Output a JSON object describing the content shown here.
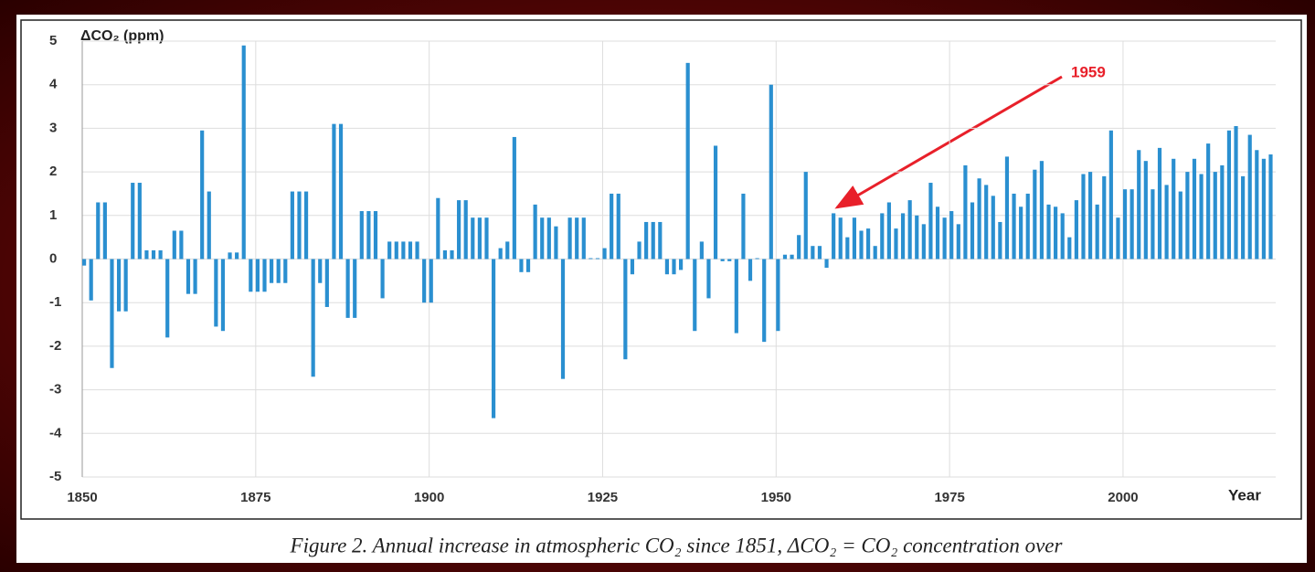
{
  "chart_data": {
    "type": "bar",
    "y_label": "ΔCO₂ (ppm)",
    "x_label": "Year",
    "caption": "Figure 2. Annual increase in atmospheric CO₂ since 1851,  ΔCO₂ = CO₂ concentration over",
    "annotation": "1959",
    "color": "#2a8fd0",
    "grid": true,
    "xlim": [
      1850,
      2022
    ],
    "xticks": [
      1850,
      1875,
      1900,
      1925,
      1950,
      1975,
      2000
    ],
    "ylim": [
      -5,
      5
    ],
    "yticks": [
      -5,
      -4,
      -3,
      -2,
      -1,
      0,
      1,
      2,
      3,
      4,
      5
    ],
    "x": [
      1850,
      1851,
      1852,
      1853,
      1854,
      1855,
      1856,
      1857,
      1858,
      1859,
      1860,
      1861,
      1862,
      1863,
      1864,
      1865,
      1866,
      1867,
      1868,
      1869,
      1870,
      1871,
      1872,
      1873,
      1874,
      1875,
      1876,
      1877,
      1878,
      1879,
      1880,
      1881,
      1882,
      1883,
      1884,
      1885,
      1886,
      1887,
      1888,
      1889,
      1890,
      1891,
      1892,
      1893,
      1894,
      1895,
      1896,
      1897,
      1898,
      1899,
      1900,
      1901,
      1902,
      1903,
      1904,
      1905,
      1906,
      1907,
      1908,
      1909,
      1910,
      1911,
      1912,
      1913,
      1914,
      1915,
      1916,
      1917,
      1918,
      1919,
      1920,
      1921,
      1922,
      1923,
      1924,
      1925,
      1926,
      1927,
      1928,
      1929,
      1930,
      1931,
      1932,
      1933,
      1934,
      1935,
      1936,
      1937,
      1938,
      1939,
      1940,
      1941,
      1942,
      1943,
      1944,
      1945,
      1946,
      1947,
      1948,
      1949,
      1950,
      1951,
      1952,
      1953,
      1954,
      1955,
      1956,
      1957,
      1958,
      1959,
      1960,
      1961,
      1962,
      1963,
      1964,
      1965,
      1966,
      1967,
      1968,
      1969,
      1970,
      1971,
      1972,
      1973,
      1974,
      1975,
      1976,
      1977,
      1978,
      1979,
      1980,
      1981,
      1982,
      1983,
      1984,
      1985,
      1986,
      1987,
      1988,
      1989,
      1990,
      1991,
      1992,
      1993,
      1994,
      1995,
      1996,
      1997,
      1998,
      1999,
      2000,
      2001,
      2002,
      2003,
      2004,
      2005,
      2006,
      2007,
      2008,
      2009,
      2010,
      2011,
      2012,
      2013,
      2014,
      2015,
      2016,
      2017,
      2018,
      2019,
      2020,
      2021
    ],
    "values": [
      -0.15,
      -0.95,
      1.3,
      1.3,
      -2.5,
      -1.2,
      -1.2,
      1.75,
      1.75,
      0.2,
      0.2,
      0.2,
      -1.8,
      0.65,
      0.65,
      -0.8,
      -0.8,
      2.95,
      1.55,
      -1.55,
      -1.65,
      0.15,
      0.15,
      4.9,
      -0.75,
      -0.75,
      -0.75,
      -0.55,
      -0.55,
      -0.55,
      1.55,
      1.55,
      1.55,
      -2.7,
      -0.55,
      -1.1,
      3.1,
      3.1,
      -1.35,
      -1.35,
      1.1,
      1.1,
      1.1,
      -0.9,
      0.4,
      0.4,
      0.4,
      0.4,
      0.4,
      -1.0,
      -1.0,
      1.4,
      0.2,
      0.2,
      1.35,
      1.35,
      0.95,
      0.95,
      0.95,
      -3.65,
      0.25,
      0.4,
      2.8,
      -0.3,
      -0.3,
      1.25,
      0.95,
      0.95,
      0.75,
      -2.75,
      0.95,
      0.95,
      0.95,
      0.02,
      0.02,
      0.25,
      1.5,
      1.5,
      -2.3,
      -0.35,
      0.4,
      0.85,
      0.85,
      0.85,
      -0.35,
      -0.35,
      -0.25,
      4.5,
      -1.65,
      0.4,
      -0.9,
      2.6,
      -0.05,
      -0.05,
      -1.7,
      1.5,
      -0.5,
      0.02,
      -1.9,
      4.0,
      -1.65,
      0.1,
      0.1,
      0.55,
      2.0,
      0.3,
      0.3,
      -0.2,
      1.05,
      0.95,
      0.5,
      0.95,
      0.65,
      0.7,
      0.3,
      1.05,
      1.3,
      0.7,
      1.05,
      1.35,
      1.0,
      0.8,
      1.75,
      1.2,
      0.95,
      1.1,
      0.8,
      2.15,
      1.3,
      1.85,
      1.7,
      1.45,
      0.85,
      2.35,
      1.5,
      1.2,
      1.5,
      2.05,
      2.25,
      1.25,
      1.2,
      1.05,
      0.5,
      1.35,
      1.95,
      2.0,
      1.25,
      1.9,
      2.95,
      0.95,
      1.6,
      1.6,
      2.5,
      2.25,
      1.6,
      2.55,
      1.7,
      2.3,
      1.55,
      2.0,
      2.3,
      1.95,
      2.65,
      2.0,
      2.15,
      2.95,
      3.05,
      1.9,
      2.85,
      2.5,
      2.3,
      2.4
    ]
  }
}
